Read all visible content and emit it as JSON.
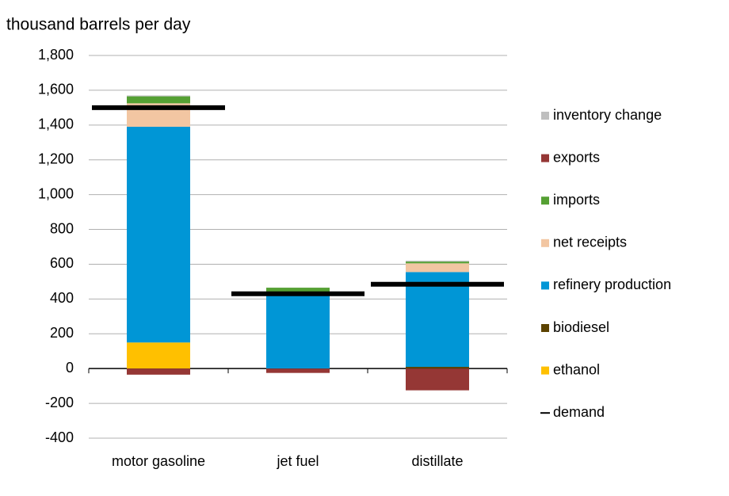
{
  "chart_data": {
    "type": "stacked-bar",
    "title": "thousand barrels per day",
    "categories": [
      "motor gasoline",
      "jet fuel",
      "distillate"
    ],
    "series": [
      {
        "name": "ethanol",
        "color": "#ffc000",
        "values": [
          150,
          0,
          0
        ]
      },
      {
        "name": "biodiesel",
        "color": "#5c4300",
        "values": [
          0,
          0,
          10
        ]
      },
      {
        "name": "refinery production",
        "color": "#0096d6",
        "values": [
          1240,
          430,
          545
        ]
      },
      {
        "name": "net receipts",
        "color": "#f2c6a2",
        "values": [
          135,
          0,
          50
        ]
      },
      {
        "name": "imports",
        "color": "#55a033",
        "values": [
          40,
          35,
          10
        ]
      },
      {
        "name": "exports",
        "color": "#953735",
        "values": [
          -35,
          -25,
          -125
        ]
      },
      {
        "name": "inventory change",
        "color": "#bfbfbf",
        "values": [
          5,
          0,
          5
        ]
      }
    ],
    "demand": {
      "name": "demand",
      "color": "#000000",
      "values": [
        1500,
        430,
        485
      ]
    },
    "ylim": [
      -400,
      1800
    ],
    "yticks": [
      -400,
      -200,
      0,
      200,
      400,
      600,
      800,
      {
        "value": 1000,
        "label": "1,000"
      },
      {
        "value": 1200,
        "label": "1,200"
      },
      {
        "value": 1400,
        "label": "1,400"
      },
      {
        "value": 1600,
        "label": "1,600"
      },
      {
        "value": 1800,
        "label": "1,800"
      }
    ],
    "legend_order": [
      "inventory change",
      "exports",
      "imports",
      "net receipts",
      "refinery production",
      "biodiesel",
      "ethanol"
    ],
    "grid": true
  }
}
